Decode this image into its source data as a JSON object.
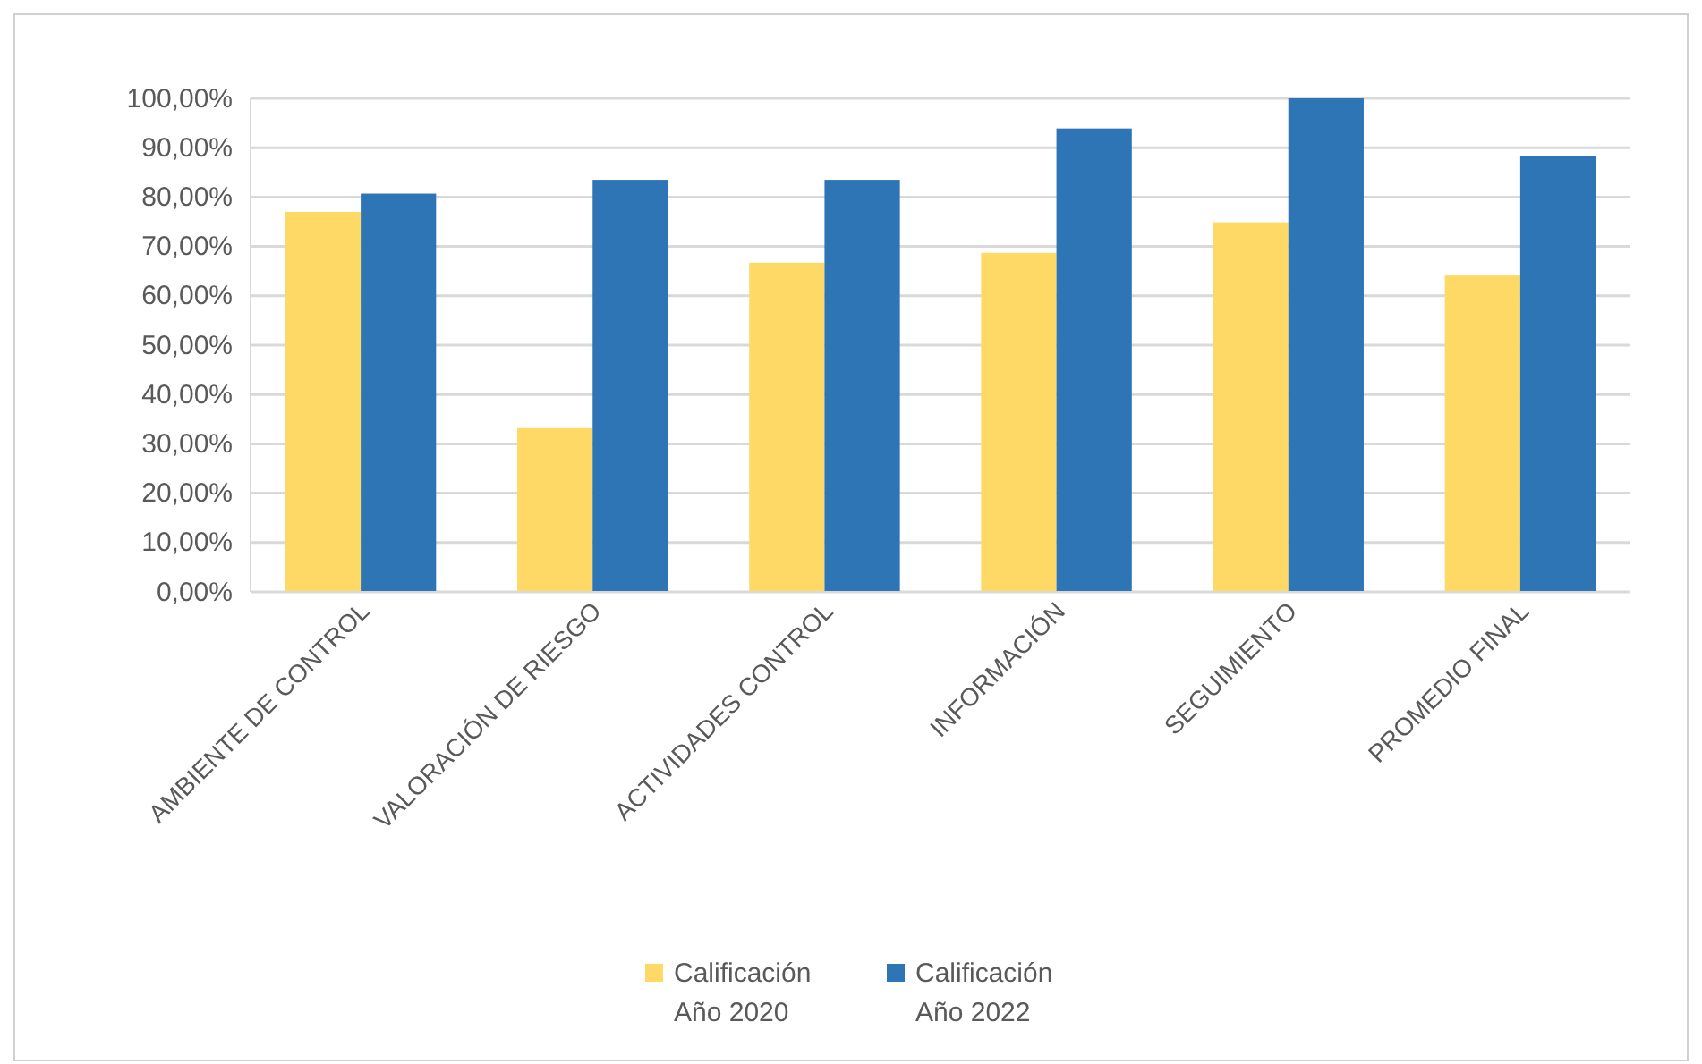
{
  "chart_data": {
    "type": "bar",
    "categories": [
      "AMBIENTE DE CONTROL",
      "VALORACIÓN DE RIESGO",
      "ACTIVIDADES CONTROL",
      "INFORMACIÓN",
      "SEGUIMIENTO",
      "PROMEDIO FINAL"
    ],
    "series": [
      {
        "name": "Calificación Año 2020",
        "color": "#ffd966",
        "values": [
          77.0,
          33.2,
          66.7,
          68.7,
          74.9,
          64.1
        ]
      },
      {
        "name": "Calificación Año 2022",
        "color": "#2e75b6",
        "values": [
          80.7,
          83.5,
          83.5,
          93.9,
          100,
          88.3
        ]
      }
    ],
    "ylim": [
      0,
      100
    ],
    "yticks": [
      {
        "value": 0,
        "label": "0,00%"
      },
      {
        "value": 10,
        "label": "10,00%"
      },
      {
        "value": 20,
        "label": "20,00%"
      },
      {
        "value": 30,
        "label": "30,00%"
      },
      {
        "value": 40,
        "label": "40,00%"
      },
      {
        "value": 50,
        "label": "50,00%"
      },
      {
        "value": 60,
        "label": "60,00%"
      },
      {
        "value": 70,
        "label": "70,00%"
      },
      {
        "value": 80,
        "label": "80,00%"
      },
      {
        "value": 90,
        "label": "90,00%"
      },
      {
        "value": 100,
        "label": "100,00%"
      }
    ],
    "grid": "y",
    "legend": "bottom"
  }
}
